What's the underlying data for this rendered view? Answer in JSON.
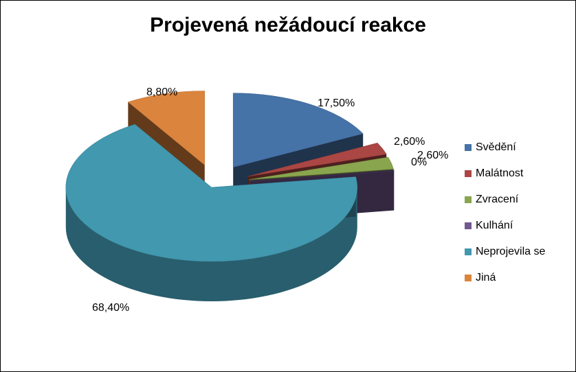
{
  "chart_data": {
    "type": "pie",
    "title": "Projevená nežádoucí reakce",
    "categories": [
      "Svědění",
      "Malátnost",
      "Zvracení",
      "Kulhání",
      "Neprojevila se",
      "Jiná"
    ],
    "values": [
      17.5,
      2.6,
      2.6,
      0,
      68.4,
      8.8
    ],
    "value_labels": [
      "17,50%",
      "2,60%",
      "2,60%",
      "0%",
      "68,40%",
      "8,80%"
    ],
    "colors": [
      "#4572A7",
      "#AA4643",
      "#89A54E",
      "#71588F",
      "#4198AF",
      "#DB843D"
    ],
    "style": "3d-exploded",
    "legend_position": "right"
  }
}
